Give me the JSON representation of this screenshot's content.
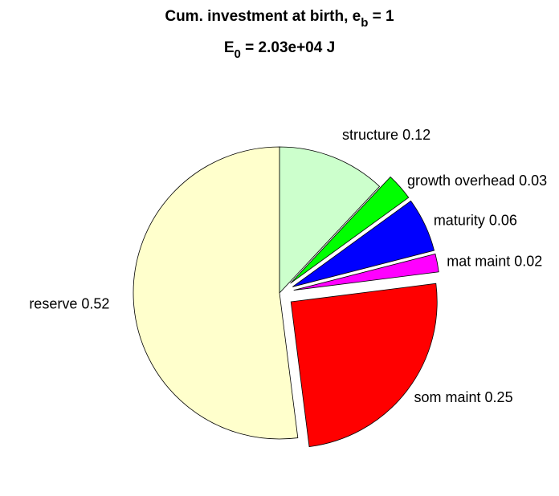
{
  "chart_data": {
    "type": "pie",
    "title": [
      "Cum. investment at birth, e",
      "b",
      " = 1"
    ],
    "subtitle": [
      "E",
      "0",
      " = 2.03e+04 J"
    ],
    "categories": [
      "structure",
      "growth overhead",
      "maturity",
      "mat maint",
      "som maint",
      "reserve"
    ],
    "values": [
      0.12,
      0.03,
      0.06,
      0.02,
      0.25,
      0.52
    ],
    "value_labels": [
      "0.12",
      "0.03",
      "0.06",
      "0.02",
      "0.25",
      "0.52"
    ],
    "colors": [
      "#ccffcc",
      "#00ff00",
      "#0000ff",
      "#ff00ff",
      "#ff0000",
      "#ffffcc"
    ],
    "explode": [
      false,
      true,
      true,
      true,
      true,
      false
    ]
  }
}
